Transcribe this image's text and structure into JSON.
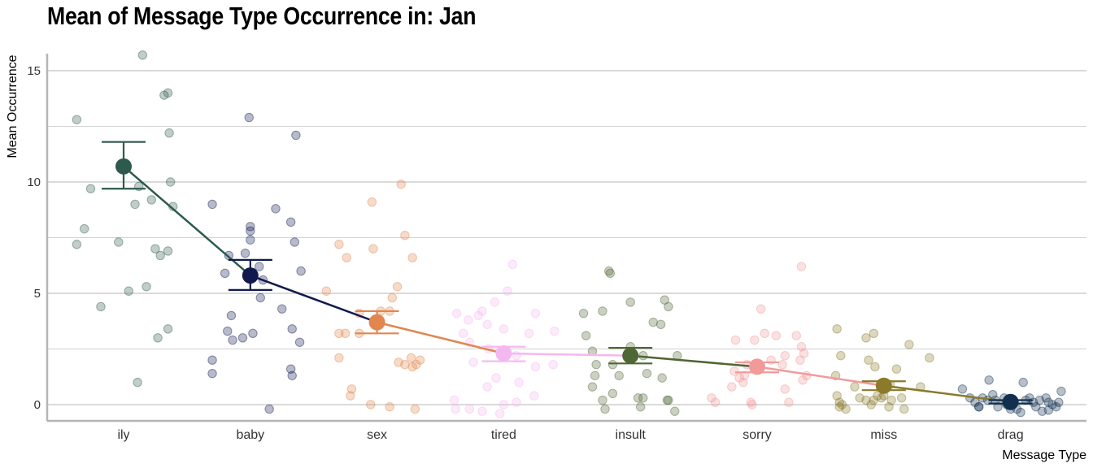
{
  "chart_data": {
    "type": "scatter",
    "title": "Mean of Message Type Occurrence in: Jan",
    "xlabel": "Message Type",
    "ylabel": "Mean Occurrence",
    "yticks": [
      0,
      5,
      10,
      15
    ],
    "ylim": [
      -0.7,
      15.8
    ],
    "grid": "horizontal",
    "categories": [
      "ily",
      "baby",
      "sex",
      "tired",
      "insult",
      "sorry",
      "miss",
      "drag"
    ],
    "colors": [
      "#2e5a4e",
      "#111a4e",
      "#e0874f",
      "#f4b8f0",
      "#4f6635",
      "#f29a9a",
      "#8a7a2a",
      "#12304e"
    ],
    "means": [
      10.7,
      5.8,
      3.7,
      2.3,
      2.2,
      1.7,
      0.85,
      0.12
    ],
    "error_low": [
      9.7,
      5.15,
      3.2,
      1.95,
      1.85,
      1.45,
      0.65,
      0.05
    ],
    "error_high": [
      11.8,
      6.5,
      4.2,
      2.6,
      2.55,
      1.9,
      1.05,
      0.2
    ],
    "points": [
      [
        [
          -0.37,
          12.8
        ],
        [
          -0.26,
          9.7
        ],
        [
          -0.31,
          7.9
        ],
        [
          -0.37,
          7.2
        ],
        [
          -0.18,
          4.4
        ],
        [
          -0.04,
          7.3
        ],
        [
          0.04,
          5.1
        ],
        [
          0.09,
          9.0
        ],
        [
          0.15,
          15.7
        ],
        [
          0.12,
          9.8
        ],
        [
          0.22,
          9.2
        ],
        [
          0.29,
          6.7
        ],
        [
          0.32,
          13.9
        ],
        [
          0.35,
          14.0
        ],
        [
          0.36,
          12.2
        ],
        [
          0.37,
          10.0
        ],
        [
          0.39,
          8.9
        ],
        [
          0.35,
          6.9
        ],
        [
          0.35,
          3.4
        ],
        [
          0.18,
          5.3
        ],
        [
          0.25,
          7.0
        ],
        [
          0.27,
          3.0
        ],
        [
          0.11,
          1.0
        ],
        [
          0.02,
          10.8
        ]
      ],
      [
        [
          -0.3,
          9.0
        ],
        [
          -0.17,
          6.7
        ],
        [
          -0.2,
          5.9
        ],
        [
          -0.15,
          4.0
        ],
        [
          -0.18,
          3.3
        ],
        [
          -0.14,
          2.9
        ],
        [
          -0.3,
          2.0
        ],
        [
          -0.3,
          1.4
        ],
        [
          -0.06,
          3.0
        ],
        [
          -0.01,
          12.9
        ],
        [
          0.0,
          8.0
        ],
        [
          0.0,
          7.8
        ],
        [
          0.0,
          7.4
        ],
        [
          -0.04,
          6.8
        ],
        [
          0.07,
          6.2
        ],
        [
          0.08,
          4.8
        ],
        [
          0.02,
          3.2
        ],
        [
          0.1,
          5.6
        ],
        [
          0.2,
          8.8
        ],
        [
          0.25,
          4.3
        ],
        [
          0.32,
          8.2
        ],
        [
          0.36,
          12.1
        ],
        [
          0.35,
          7.3
        ],
        [
          0.4,
          6.0
        ],
        [
          0.33,
          3.4
        ],
        [
          0.39,
          2.8
        ],
        [
          0.32,
          1.6
        ],
        [
          0.33,
          1.3
        ],
        [
          0.15,
          -0.2
        ]
      ],
      [
        [
          -0.4,
          5.1
        ],
        [
          -0.3,
          3.2
        ],
        [
          -0.25,
          3.2
        ],
        [
          -0.3,
          7.2
        ],
        [
          -0.24,
          6.6
        ],
        [
          -0.3,
          2.1
        ],
        [
          -0.2,
          0.7
        ],
        [
          -0.21,
          0.4
        ],
        [
          -0.14,
          3.2
        ],
        [
          -0.04,
          9.1
        ],
        [
          -0.03,
          7.0
        ],
        [
          0.03,
          4.2
        ],
        [
          0.1,
          4.2
        ],
        [
          0.12,
          4.8
        ],
        [
          0.16,
          5.3
        ],
        [
          0.19,
          9.9
        ],
        [
          0.22,
          7.6
        ],
        [
          0.28,
          6.6
        ],
        [
          0.27,
          2.1
        ],
        [
          0.17,
          1.9
        ],
        [
          0.22,
          1.8
        ],
        [
          0.31,
          1.8
        ],
        [
          0.28,
          1.7
        ],
        [
          0.34,
          2.0
        ],
        [
          -0.05,
          0.0
        ],
        [
          0.1,
          -0.1
        ],
        [
          0.3,
          -0.2
        ],
        [
          -0.14,
          4.1
        ]
      ],
      [
        [
          -0.37,
          4.1
        ],
        [
          -0.28,
          3.8
        ],
        [
          -0.32,
          3.2
        ],
        [
          -0.27,
          2.8
        ],
        [
          -0.2,
          4.0
        ],
        [
          -0.17,
          4.2
        ],
        [
          -0.13,
          3.6
        ],
        [
          -0.07,
          4.6
        ],
        [
          -0.12,
          2.5
        ],
        [
          -0.06,
          1.2
        ],
        [
          -0.13,
          0.8
        ],
        [
          -0.39,
          0.2
        ],
        [
          -0.38,
          -0.2
        ],
        [
          -0.17,
          -0.3
        ],
        [
          -0.03,
          -0.4
        ],
        [
          0.0,
          3.4
        ],
        [
          0.03,
          5.1
        ],
        [
          0.07,
          6.3
        ],
        [
          0.1,
          2.2
        ],
        [
          0.2,
          3.2
        ],
        [
          0.25,
          4.1
        ],
        [
          0.4,
          3.3
        ],
        [
          0.39,
          1.8
        ],
        [
          0.25,
          1.7
        ],
        [
          0.12,
          1.0
        ],
        [
          0.24,
          0.4
        ],
        [
          0.1,
          0.1
        ],
        [
          -0.24,
          1.9
        ],
        [
          -0.27,
          -0.2
        ],
        [
          0.0,
          0.0
        ]
      ],
      [
        [
          -0.37,
          4.1
        ],
        [
          -0.35,
          3.1
        ],
        [
          -0.3,
          2.4
        ],
        [
          -0.22,
          4.2
        ],
        [
          -0.27,
          1.8
        ],
        [
          -0.28,
          1.3
        ],
        [
          -0.3,
          0.8
        ],
        [
          -0.22,
          0.2
        ],
        [
          -0.2,
          -0.2
        ],
        [
          -0.14,
          1.8
        ],
        [
          -0.14,
          0.5
        ],
        [
          -0.17,
          6.0
        ],
        [
          -0.16,
          5.9
        ],
        [
          -0.09,
          1.3
        ],
        [
          0.0,
          4.6
        ],
        [
          0.0,
          2.6
        ],
        [
          0.06,
          0.3
        ],
        [
          0.1,
          0.3
        ],
        [
          0.13,
          1.4
        ],
        [
          0.18,
          3.7
        ],
        [
          0.27,
          4.7
        ],
        [
          0.3,
          4.4
        ],
        [
          0.24,
          3.6
        ],
        [
          0.37,
          2.2
        ],
        [
          0.25,
          1.2
        ],
        [
          0.29,
          0.2
        ],
        [
          0.3,
          0.2
        ],
        [
          0.35,
          -0.3
        ],
        [
          0.08,
          -0.1
        ],
        [
          0.1,
          2.2
        ]
      ],
      [
        [
          -0.36,
          0.3
        ],
        [
          -0.33,
          0.1
        ],
        [
          -0.2,
          0.8
        ],
        [
          -0.17,
          2.9
        ],
        [
          -0.14,
          1.2
        ],
        [
          -0.08,
          1.8
        ],
        [
          -0.05,
          0.1
        ],
        [
          -0.04,
          0.0
        ],
        [
          -0.11,
          1.0
        ],
        [
          -0.02,
          2.9
        ],
        [
          0.03,
          4.3
        ],
        [
          0.06,
          3.2
        ],
        [
          0.11,
          2.0
        ],
        [
          0.15,
          3.1
        ],
        [
          0.2,
          1.8
        ],
        [
          0.22,
          0.7
        ],
        [
          0.25,
          0.1
        ],
        [
          0.31,
          3.1
        ],
        [
          0.35,
          2.6
        ],
        [
          0.34,
          2.0
        ],
        [
          0.37,
          2.3
        ],
        [
          0.36,
          1.1
        ],
        [
          0.22,
          2.2
        ],
        [
          0.39,
          1.3
        ],
        [
          0.35,
          6.2
        ],
        [
          -0.18,
          1.5
        ],
        [
          -0.1,
          1.3
        ]
      ],
      [
        [
          -0.38,
          1.3
        ],
        [
          -0.37,
          0.4
        ],
        [
          -0.35,
          0.1
        ],
        [
          -0.33,
          0.0
        ],
        [
          -0.3,
          -0.2
        ],
        [
          -0.35,
          -0.1
        ],
        [
          -0.37,
          3.4
        ],
        [
          -0.34,
          2.2
        ],
        [
          -0.23,
          0.8
        ],
        [
          -0.19,
          0.3
        ],
        [
          -0.14,
          0.2
        ],
        [
          -0.1,
          0.0
        ],
        [
          -0.08,
          0.2
        ],
        [
          -0.12,
          2.0
        ],
        [
          -0.08,
          3.2
        ],
        [
          -0.14,
          3.0
        ],
        [
          -0.07,
          1.7
        ],
        [
          -0.02,
          0.3
        ],
        [
          0.0,
          0.4
        ],
        [
          0.06,
          0.2
        ],
        [
          0.05,
          0.9
        ],
        [
          0.1,
          1.6
        ],
        [
          0.14,
          0.3
        ],
        [
          0.16,
          -0.2
        ],
        [
          0.2,
          2.7
        ],
        [
          0.29,
          0.8
        ],
        [
          0.36,
          2.1
        ],
        [
          -0.05,
          0.4
        ],
        [
          0.04,
          -0.1
        ]
      ],
      [
        [
          -0.38,
          0.7
        ],
        [
          -0.32,
          0.3
        ],
        [
          -0.28,
          0.1
        ],
        [
          -0.25,
          -0.1
        ],
        [
          -0.22,
          0.3
        ],
        [
          -0.18,
          0.2
        ],
        [
          -0.17,
          1.1
        ],
        [
          -0.12,
          0.2
        ],
        [
          -0.1,
          -0.1
        ],
        [
          -0.05,
          0.3
        ],
        [
          -0.03,
          0.0
        ],
        [
          0.0,
          -0.2
        ],
        [
          0.05,
          -0.2
        ],
        [
          0.1,
          1.0
        ],
        [
          0.12,
          0.2
        ],
        [
          0.15,
          0.3
        ],
        [
          0.18,
          0.1
        ],
        [
          0.2,
          -0.1
        ],
        [
          0.23,
          0.2
        ],
        [
          0.25,
          -0.3
        ],
        [
          0.28,
          0.3
        ],
        [
          0.3,
          0.1
        ],
        [
          0.33,
          0.0
        ],
        [
          0.36,
          -0.1
        ],
        [
          0.38,
          0.1
        ],
        [
          0.4,
          0.6
        ],
        [
          -0.25,
          -0.1
        ],
        [
          0.08,
          -0.35
        ],
        [
          0.3,
          -0.25
        ],
        [
          -0.14,
          0.45
        ]
      ]
    ]
  }
}
